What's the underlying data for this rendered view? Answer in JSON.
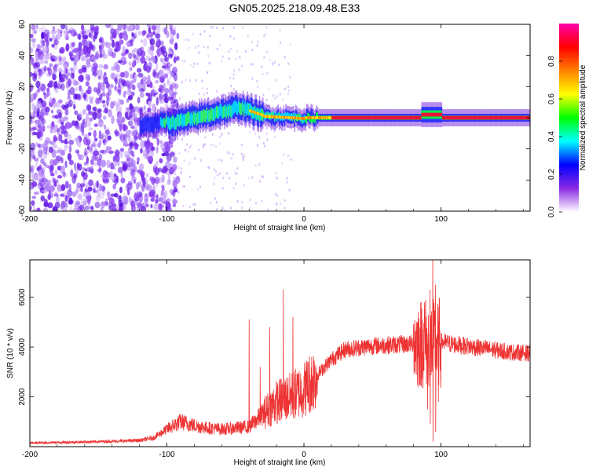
{
  "title": "GN05.2025.218.09.48.E33",
  "chart_data": [
    {
      "type": "heatmap",
      "xlabel": "Height of straight line (km)",
      "ylabel": "Frequency (Hz)",
      "xlim": [
        -200,
        165
      ],
      "ylim": [
        -60,
        60
      ],
      "x_ticks": [
        -200,
        -100,
        0,
        100
      ],
      "y_ticks": [
        -60,
        -40,
        -20,
        0,
        20,
        40,
        60
      ],
      "colorbar": {
        "label": "Normalized spectral amplitude",
        "range": [
          0,
          1
        ],
        "ticks": [
          0.0,
          0.2,
          0.4,
          0.6,
          0.8
        ],
        "colors": [
          "#ffffff",
          "#8a2be2",
          "#0000ff",
          "#00ffff",
          "#00ff00",
          "#ffff00",
          "#ff8000",
          "#ff0000",
          "#ff00aa"
        ]
      },
      "features": {
        "noise_region_km": [
          -200,
          -100
        ],
        "ridge_start_km": -120,
        "ridge_end_km": 165,
        "peak_hump_km": -45,
        "peak_hump_hz": 7,
        "secondary_bump_km": 92
      }
    },
    {
      "type": "line",
      "xlabel": "Height of straight line (km)",
      "ylabel": "SNR (10 * v/v)",
      "xlim": [
        -200,
        165
      ],
      "ylim": [
        0,
        7500
      ],
      "x_ticks": [
        -200,
        -100,
        0,
        100
      ],
      "y_ticks": [
        2000,
        4000,
        6000
      ],
      "series_color": "#ee3333",
      "envelope_points": [
        [
          -200,
          150
        ],
        [
          -150,
          200
        ],
        [
          -120,
          250
        ],
        [
          -110,
          350
        ],
        [
          -100,
          700
        ],
        [
          -90,
          1000
        ],
        [
          -80,
          850
        ],
        [
          -70,
          750
        ],
        [
          -60,
          700
        ],
        [
          -50,
          750
        ],
        [
          -40,
          800
        ],
        [
          -30,
          1300
        ],
        [
          -20,
          1800
        ],
        [
          -10,
          2000
        ],
        [
          0,
          2300
        ],
        [
          10,
          2900
        ],
        [
          20,
          3500
        ],
        [
          30,
          3900
        ],
        [
          50,
          4050
        ],
        [
          70,
          4100
        ],
        [
          85,
          4150
        ],
        [
          90,
          4200
        ],
        [
          95,
          4100
        ],
        [
          100,
          4200
        ],
        [
          110,
          4100
        ],
        [
          130,
          3950
        ],
        [
          150,
          3800
        ],
        [
          165,
          3750
        ]
      ],
      "spikes": [
        [
          -40,
          5100
        ],
        [
          -32,
          3200
        ],
        [
          -25,
          4800
        ],
        [
          -15,
          6300
        ],
        [
          -8,
          5200
        ],
        [
          80,
          4900
        ],
        [
          88,
          5800
        ],
        [
          92,
          6300
        ],
        [
          94,
          7500
        ],
        [
          96,
          6500
        ],
        [
          98,
          5600
        ]
      ],
      "dips": [
        [
          90,
          1500
        ],
        [
          92,
          900
        ],
        [
          94,
          200
        ],
        [
          96,
          600
        ],
        [
          98,
          1800
        ]
      ]
    }
  ]
}
